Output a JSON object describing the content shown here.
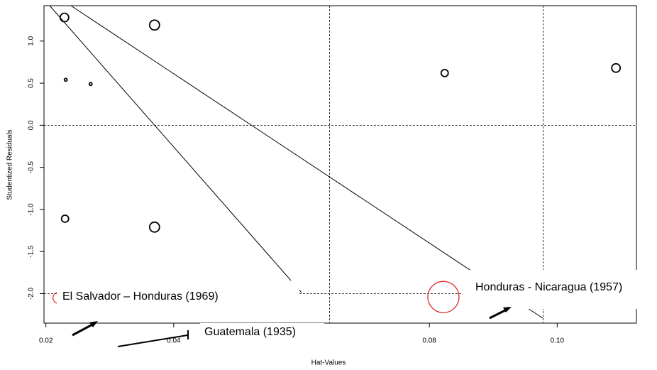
{
  "chart_data": {
    "type": "scatter",
    "xlabel": "Hat-Values",
    "ylabel": "Studentized Residuals",
    "x": [
      0.0229,
      0.0231,
      0.027,
      0.037,
      0.0824,
      0.1092,
      0.023,
      0.037
    ],
    "y": [
      1.28,
      0.54,
      0.49,
      1.19,
      0.62,
      0.68,
      -1.11,
      -1.21
    ],
    "sizes": [
      6,
      2,
      2,
      7,
      5,
      6,
      5,
      7
    ],
    "color": "#000000",
    "highlighted": {
      "x": [
        0.022,
        0.0822
      ],
      "y": [
        -2.05,
        -2.04
      ],
      "sizes": [
        8,
        22
      ],
      "color": "#e02020"
    },
    "xlim": [
      0.0197,
      0.1124
    ],
    "ylim": [
      -2.35,
      1.42
    ],
    "xticks": [
      0.02,
      0.04,
      0.08,
      {
        "value": 0.1,
        "label": "0.10"
      }
    ],
    "yticks": [
      {
        "value": 1,
        "label": "1.0"
      },
      0.5,
      {
        "value": 0,
        "label": "0.0"
      },
      -0.5,
      {
        "value": -1,
        "label": "-1.0"
      },
      -1.5,
      {
        "value": -2,
        "label": "-2.0"
      }
    ],
    "hlines": [
      0,
      -2
    ],
    "vlines": [
      0.0644,
      0.0978
    ],
    "annotations": [
      "El Salvador – Honduras (1969)",
      "Guatemala  (1935)",
      "Honduras  - Nicaragua (1957)"
    ]
  }
}
